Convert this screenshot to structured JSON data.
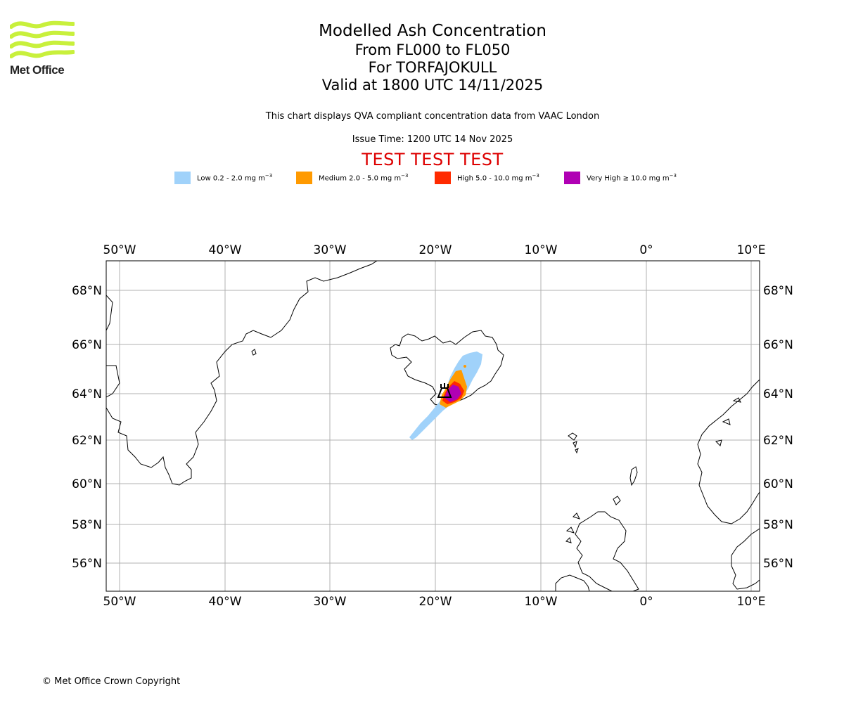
{
  "logo": {
    "text": "Met Office",
    "icon": "met-office-wave-icon",
    "color": "#c8f03c"
  },
  "titles": {
    "title": "Modelled Ash Concentration",
    "flight_levels": "From FL000 to FL050",
    "volcano": "For TORFAJOKULL",
    "valid": "Valid at 1800 UTC 14/11/2025"
  },
  "description": "This chart displays QVA compliant concentration data from VAAC London",
  "issue_time": "Issue Time: 1200 UTC 14 Nov 2025",
  "test_banner": "TEST TEST TEST",
  "legend": [
    {
      "label": "Low 0.2 - 2.0 mg m",
      "color": "#a0d2fa"
    },
    {
      "label": "Medium 2.0 - 5.0 mg m",
      "color": "#ff9a00"
    },
    {
      "label": "High 5.0 - 10.0 mg m",
      "color": "#ff2a00"
    },
    {
      "label": "Very High ≥ 10.0 mg m",
      "color": "#b000b4"
    }
  ],
  "legend_exponent": "−3",
  "map": {
    "longitude_labels": [
      "50°W",
      "40°W",
      "30°W",
      "20°W",
      "10°W",
      "0°",
      "10°E"
    ],
    "latitude_labels": [
      "68°N",
      "66°N",
      "64°N",
      "62°N",
      "60°N",
      "58°N",
      "56°N"
    ],
    "volcano_marker": "volcano-icon",
    "grid": true
  },
  "copyright": "© Met Office Crown Copyright"
}
